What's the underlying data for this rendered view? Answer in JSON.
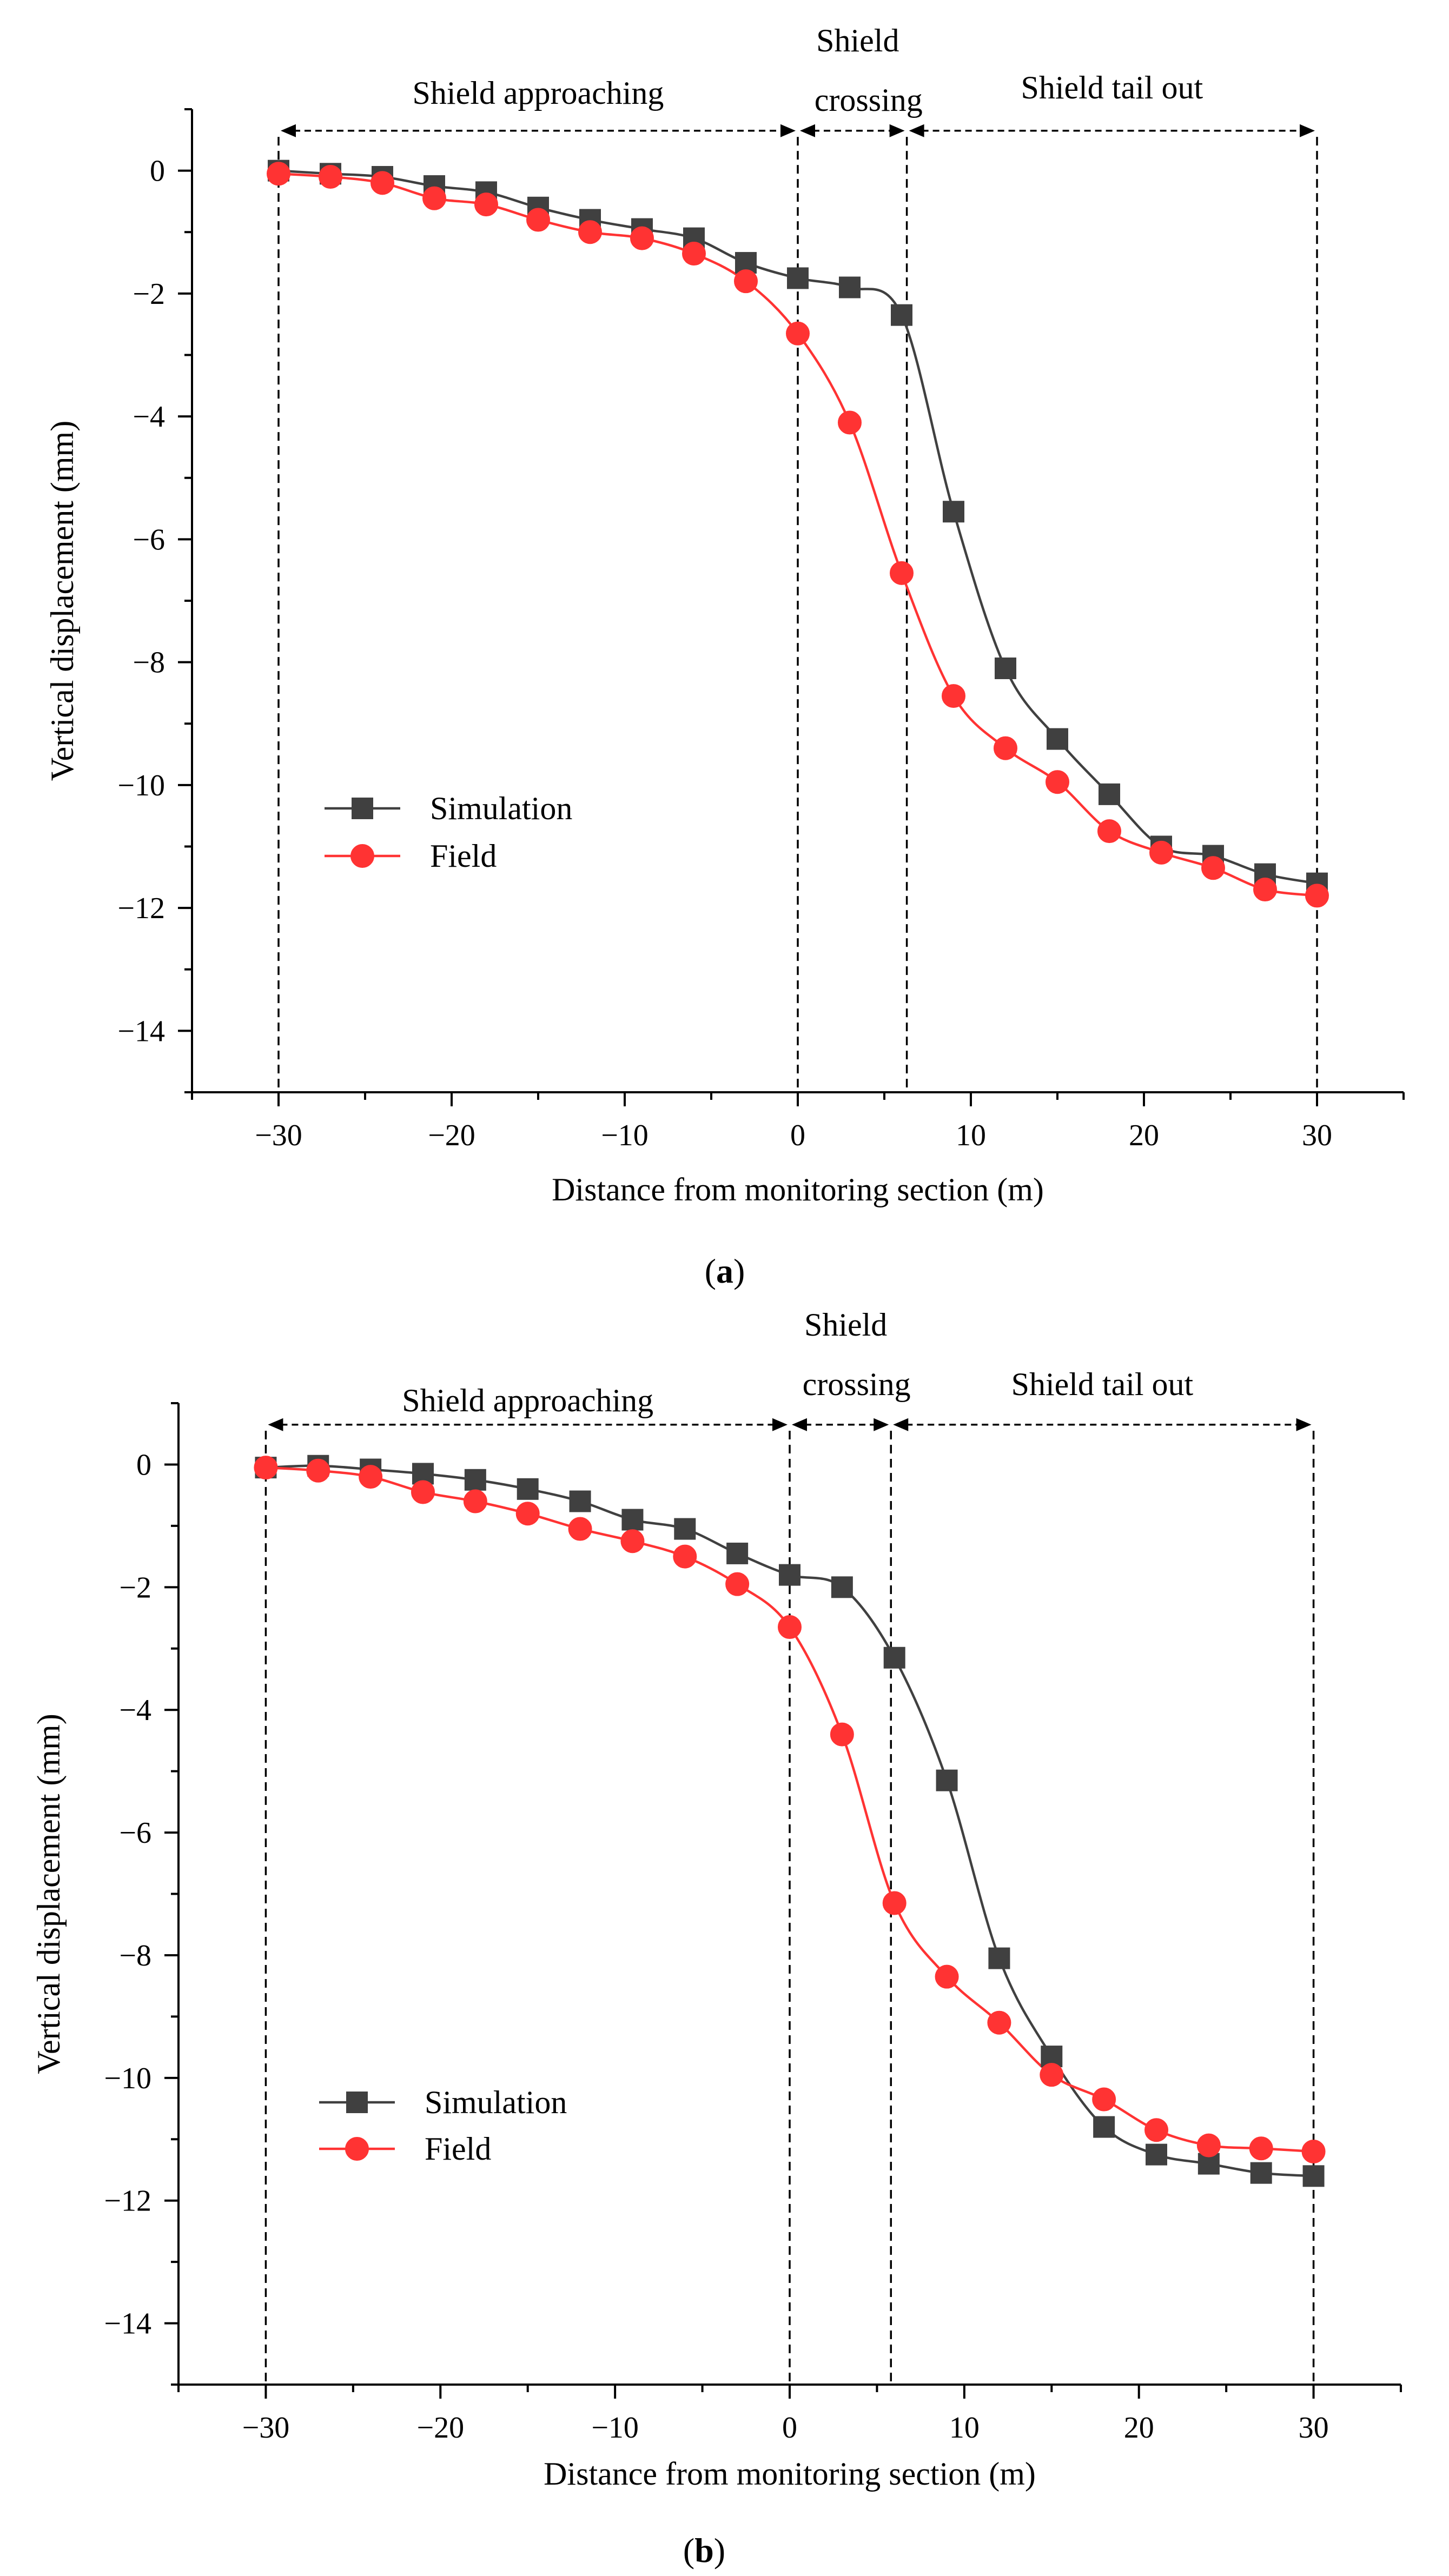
{
  "chart_data": [
    {
      "type": "line",
      "panel_label": "a",
      "xlabel": "Distance from monitoring section (m)",
      "ylabel": "Vertical displacement (mm)",
      "xlim": [
        -35,
        35
      ],
      "ylim": [
        -15,
        1
      ],
      "xticks": [
        -30,
        -20,
        -10,
        0,
        10,
        20,
        30
      ],
      "yticks": [
        0,
        -2,
        -4,
        -6,
        -8,
        -10,
        -12,
        -14
      ],
      "x": [
        -30,
        -27,
        -24,
        -21,
        -18,
        -15,
        -12,
        -9,
        -6,
        -3,
        0,
        3,
        6,
        9,
        12,
        15,
        18,
        21,
        24,
        27,
        30
      ],
      "series": [
        {
          "name": "Simulation",
          "color": "#404040",
          "marker": "square",
          "values": [
            0,
            -0.05,
            -0.1,
            -0.25,
            -0.35,
            -0.6,
            -0.8,
            -0.95,
            -1.1,
            -1.5,
            -1.75,
            -1.9,
            -2.35,
            -5.55,
            -8.1,
            -9.25,
            -10.15,
            -11.0,
            -11.15,
            -11.45,
            -11.6
          ]
        },
        {
          "name": "Field",
          "color": "#ff3333",
          "marker": "circle",
          "values": [
            -0.05,
            -0.1,
            -0.2,
            -0.45,
            -0.55,
            -0.8,
            -1.0,
            -1.1,
            -1.35,
            -1.8,
            -2.65,
            -4.1,
            -6.55,
            -8.55,
            -9.4,
            -9.95,
            -10.75,
            -11.1,
            -11.35,
            -11.7,
            -11.8
          ]
        }
      ],
      "regions": [
        {
          "label": "Shield approaching",
          "from": -30,
          "to": 0
        },
        {
          "label_lines": [
            "Shield",
            "crossing"
          ],
          "from": 0,
          "to": 6.3
        },
        {
          "label": "Shield tail out",
          "from": 6.3,
          "to": 30
        }
      ],
      "boundaries": [
        -30,
        0,
        6.3,
        30
      ],
      "legend_position": "lower-left"
    },
    {
      "type": "line",
      "panel_label": "b",
      "xlabel": "Distance from monitoring section (m)",
      "ylabel": "Vertical displacement (mm)",
      "xlim": [
        -35,
        35
      ],
      "ylim": [
        -15,
        1
      ],
      "xticks": [
        -30,
        -20,
        -10,
        0,
        10,
        20,
        30
      ],
      "yticks": [
        0,
        -2,
        -4,
        -6,
        -8,
        -10,
        -12,
        -14
      ],
      "x": [
        -30,
        -27,
        -24,
        -21,
        -18,
        -15,
        -12,
        -9,
        -6,
        -3,
        0,
        3,
        6,
        9,
        12,
        15,
        18,
        21,
        24,
        27,
        30
      ],
      "series": [
        {
          "name": "Simulation",
          "color": "#404040",
          "marker": "square",
          "values": [
            -0.05,
            -0.02,
            -0.08,
            -0.15,
            -0.25,
            -0.4,
            -0.6,
            -0.9,
            -1.05,
            -1.45,
            -1.8,
            -2.0,
            -3.15,
            -5.15,
            -8.05,
            -9.65,
            -10.8,
            -11.25,
            -11.4,
            -11.55,
            -11.6
          ]
        },
        {
          "name": "Field",
          "color": "#ff3333",
          "marker": "circle",
          "values": [
            -0.05,
            -0.1,
            -0.2,
            -0.45,
            -0.6,
            -0.8,
            -1.05,
            -1.25,
            -1.5,
            -1.95,
            -2.65,
            -4.4,
            -7.15,
            -8.35,
            -9.1,
            -9.95,
            -10.35,
            -10.85,
            -11.1,
            -11.15,
            -11.2
          ]
        }
      ],
      "regions": [
        {
          "label": "Shield approaching",
          "from": -30,
          "to": 0
        },
        {
          "label_lines": [
            "Shield",
            "crossing"
          ],
          "from": 0,
          "to": 5.8
        },
        {
          "label": "Shield tail out",
          "from": 5.8,
          "to": 30
        }
      ],
      "boundaries": [
        -30,
        0,
        5.8,
        30
      ],
      "legend_position": "lower-left"
    }
  ]
}
